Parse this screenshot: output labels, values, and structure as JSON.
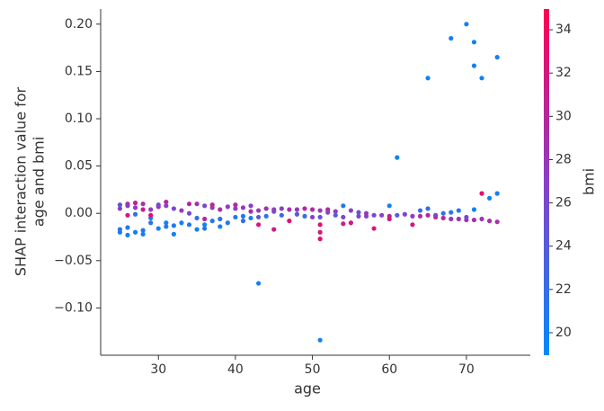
{
  "chart_data": {
    "type": "scatter",
    "xlabel": "age",
    "ylabel": [
      "SHAP interaction value for",
      "age and bmi"
    ],
    "xlim": [
      22.5,
      78.3
    ],
    "ylim": [
      -0.15,
      0.216
    ],
    "xticks": [
      30,
      40,
      50,
      60,
      70
    ],
    "yticks": [
      {
        "value": -0.1,
        "label": "−0.10"
      },
      {
        "value": -0.05,
        "label": "−0.05"
      },
      {
        "value": 0,
        "label": "0.00"
      },
      {
        "value": 0.05,
        "label": "0.05"
      },
      {
        "value": 0.1,
        "label": "0.10"
      },
      {
        "value": 0.15,
        "label": "0.15"
      },
      {
        "value": 0.2,
        "label": "0.20"
      }
    ],
    "colorbar": {
      "label": "bmi",
      "lim": [
        18.96,
        34.96
      ],
      "ticks": [
        20,
        22,
        24,
        26,
        28,
        30,
        32,
        34
      ],
      "colormap": [
        "#008bfb",
        "#8a3fc8",
        "#ff0052"
      ]
    },
    "series": [
      {
        "x": [
          25,
          25,
          25,
          25,
          26,
          26,
          26,
          26,
          26,
          27,
          27,
          27,
          27,
          28,
          28,
          28,
          28,
          29,
          29,
          29,
          29,
          30,
          30,
          30,
          31,
          31,
          31,
          31,
          32,
          32,
          32,
          33,
          33,
          34,
          34,
          34,
          35,
          35,
          35,
          36,
          36,
          36,
          36,
          37,
          37,
          37,
          38,
          38,
          38,
          39,
          39,
          40,
          40,
          40,
          41,
          41,
          41,
          42,
          42,
          42,
          43,
          43,
          43,
          43,
          44,
          44,
          45,
          45,
          45,
          46,
          46,
          47,
          47,
          48,
          48,
          49,
          49,
          50,
          50,
          51,
          51,
          51,
          51,
          51,
          51,
          52,
          52,
          53,
          53,
          54,
          54,
          54,
          55,
          55,
          56,
          56,
          57,
          57,
          58,
          58,
          59,
          60,
          60,
          60,
          61,
          61,
          62,
          63,
          63,
          64,
          64,
          65,
          65,
          65,
          66,
          66,
          67,
          67,
          68,
          68,
          68,
          69,
          69,
          70,
          70,
          70,
          71,
          71,
          71,
          71,
          72,
          72,
          72,
          73,
          73,
          74,
          74,
          74
        ],
        "values": [
          -0.02,
          -0.017,
          0.005,
          0.009,
          -0.023,
          -0.015,
          0.008,
          0.01,
          -0.002,
          -0.02,
          0.011,
          0.006,
          -0.001,
          -0.022,
          -0.018,
          0.01,
          0.004,
          -0.01,
          -0.005,
          0.004,
          -0.002,
          -0.016,
          0.007,
          0.009,
          -0.01,
          0.012,
          0.008,
          -0.014,
          -0.022,
          -0.013,
          0.005,
          -0.01,
          0.003,
          -0.012,
          0.01,
          0,
          -0.017,
          -0.005,
          0.01,
          -0.012,
          0.008,
          -0.006,
          -0.016,
          -0.008,
          0.006,
          0.009,
          -0.014,
          0.004,
          -0.006,
          -0.01,
          0.007,
          -0.004,
          0.009,
          0.005,
          -0.003,
          0.006,
          -0.008,
          0.008,
          -0.005,
          0.002,
          -0.074,
          -0.012,
          0.003,
          -0.004,
          -0.003,
          0.005,
          -0.017,
          0.002,
          0.004,
          0.005,
          -0.002,
          -0.008,
          0.004,
          0.004,
          -0.001,
          0.005,
          -0.003,
          0.004,
          -0.004,
          -0.134,
          -0.027,
          -0.012,
          -0.02,
          0.003,
          -0.004,
          0.004,
          0.001,
          0.002,
          -0.002,
          0.008,
          -0.011,
          -0.004,
          -0.01,
          0.003,
          0.001,
          -0.003,
          -0.003,
          0,
          -0.016,
          -0.002,
          -0.002,
          0.008,
          -0.003,
          -0.006,
          0.059,
          -0.002,
          -0.001,
          -0.012,
          -0.003,
          0.003,
          -0.003,
          0.143,
          0.005,
          -0.002,
          -0.004,
          -0.002,
          0,
          -0.005,
          0.185,
          0.001,
          -0.006,
          0.003,
          -0.006,
          0.2,
          -0.007,
          -0.004,
          0.181,
          0.156,
          0.004,
          -0.007,
          0.143,
          0.021,
          -0.006,
          0.016,
          -0.008,
          0.165,
          0.021,
          -0.009
        ],
        "color_values": [
          20,
          21,
          27,
          25,
          20,
          21,
          26,
          29,
          32,
          20,
          31,
          27,
          22,
          20,
          21,
          29,
          31,
          21,
          21,
          27,
          33,
          20,
          28,
          26,
          20,
          30,
          27,
          21,
          20,
          21,
          26,
          20,
          28,
          21,
          30,
          26,
          20,
          22,
          29,
          20,
          26,
          30,
          21,
          21,
          27,
          30,
          20,
          29,
          22,
          21,
          27,
          21,
          30,
          27,
          21,
          28,
          22,
          27,
          20,
          29,
          20,
          32,
          28,
          24,
          21,
          29,
          32,
          26,
          27,
          27,
          22,
          33,
          29,
          28,
          24,
          30,
          22,
          29,
          27,
          20,
          33,
          33,
          32,
          28,
          25,
          30,
          27,
          27,
          24,
          21,
          31,
          26,
          32,
          27,
          25,
          26,
          27,
          28,
          32,
          26,
          27,
          20,
          30,
          32,
          20,
          24,
          26,
          32,
          27,
          22,
          29,
          20,
          22,
          30,
          32,
          26,
          21,
          30,
          20,
          21,
          28,
          21,
          28,
          20,
          29,
          26,
          20,
          20,
          20,
          29,
          20,
          33,
          28,
          20,
          29,
          20,
          20,
          29
        ]
      }
    ]
  }
}
